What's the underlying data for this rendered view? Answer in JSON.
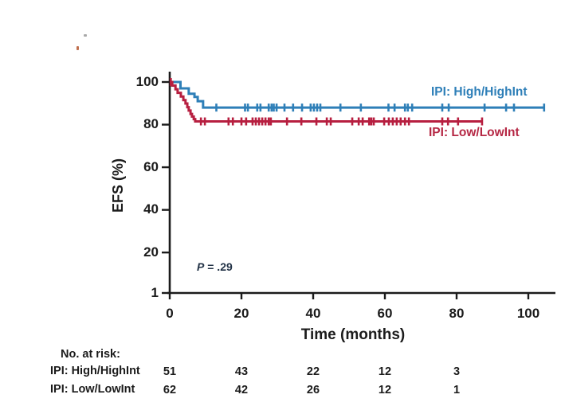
{
  "figure": {
    "y_axis_title": "EFS (%)",
    "x_axis_title": "Time (months)",
    "p_label_italic": "P",
    "p_label_rest": " = .29"
  },
  "legend": {
    "high": "IPI: High/HighInt",
    "low": "IPI: Low/LowInt"
  },
  "risk_table": {
    "header": "No. at risk:",
    "times": [
      0,
      20,
      40,
      60,
      80
    ],
    "rows": [
      {
        "label": "IPI: High/HighInt",
        "values": [
          "51",
          "43",
          "22",
          "12",
          "3"
        ]
      },
      {
        "label": "IPI: Low/LowInt",
        "values": [
          "62",
          "42",
          "26",
          "12",
          "1"
        ]
      }
    ]
  },
  "chart_data": {
    "type": "line",
    "subtype": "kaplan_meier_step",
    "title": "",
    "xlabel": "Time (months)",
    "ylabel": "EFS (%)",
    "xlim": [
      0,
      107
    ],
    "ylim": [
      1,
      100
    ],
    "grid": false,
    "legend_position": "inline-right",
    "annotation": "P = .29",
    "axis_color": "#1b1b1b",
    "x_ticks": [
      0,
      20,
      40,
      60,
      80,
      100
    ],
    "x_tick_labels": [
      "0",
      "20",
      "40",
      "60",
      "80",
      "100"
    ],
    "y_ticks": [
      100,
      80,
      60,
      40,
      20,
      1
    ],
    "y_tick_labels": [
      "100",
      "80",
      "60",
      "40",
      "20",
      "1"
    ],
    "series": [
      {
        "name": "IPI: High/HighInt",
        "color": "#2e7fb8",
        "n": 51,
        "plateau_percent": 88,
        "points": [
          [
            0,
            100
          ],
          [
            3,
            100
          ],
          [
            3,
            97
          ],
          [
            5.3,
            97
          ],
          [
            5.3,
            94.5
          ],
          [
            6.9,
            94.5
          ],
          [
            6.9,
            93
          ],
          [
            7.8,
            93
          ],
          [
            7.8,
            91
          ],
          [
            9.3,
            91
          ],
          [
            9.3,
            88
          ],
          [
            104.4,
            88
          ]
        ],
        "censors": [
          [
            13,
            88
          ],
          [
            21,
            88
          ],
          [
            21.8,
            88
          ],
          [
            24.4,
            88
          ],
          [
            25.3,
            88
          ],
          [
            27.6,
            88
          ],
          [
            28.4,
            88
          ],
          [
            29,
            88
          ],
          [
            29.8,
            88
          ],
          [
            32,
            88
          ],
          [
            34.4,
            88
          ],
          [
            36.9,
            88
          ],
          [
            39.3,
            88
          ],
          [
            40.2,
            88
          ],
          [
            41.1,
            88
          ],
          [
            42,
            88
          ],
          [
            47.6,
            88
          ],
          [
            53.3,
            88
          ],
          [
            61,
            88
          ],
          [
            62.7,
            88
          ],
          [
            65.6,
            88
          ],
          [
            66.4,
            88
          ],
          [
            67.6,
            88
          ],
          [
            76,
            88
          ],
          [
            77.8,
            88
          ],
          [
            87.8,
            88
          ],
          [
            93.8,
            88
          ],
          [
            96,
            88
          ],
          [
            104.4,
            88
          ]
        ]
      },
      {
        "name": "IPI: Low/LowInt",
        "color": "#b71f40",
        "n": 62,
        "plateau_percent": 81.5,
        "points": [
          [
            0,
            100
          ],
          [
            0.7,
            100
          ],
          [
            0.7,
            98.3
          ],
          [
            1.6,
            98.3
          ],
          [
            1.6,
            96.6
          ],
          [
            2.2,
            96.6
          ],
          [
            2.2,
            94.9
          ],
          [
            3.1,
            94.9
          ],
          [
            3.1,
            93.2
          ],
          [
            3.8,
            93.2
          ],
          [
            3.8,
            91.5
          ],
          [
            4.4,
            91.5
          ],
          [
            4.4,
            89.9
          ],
          [
            4.9,
            89.9
          ],
          [
            4.9,
            88.2
          ],
          [
            5.3,
            88.2
          ],
          [
            5.3,
            86.6
          ],
          [
            5.8,
            86.6
          ],
          [
            5.8,
            85
          ],
          [
            6.2,
            85
          ],
          [
            6.2,
            83.8
          ],
          [
            6.7,
            83.8
          ],
          [
            6.7,
            82.6
          ],
          [
            7.1,
            82.6
          ],
          [
            7.1,
            81.5
          ],
          [
            87.1,
            81.5
          ]
        ],
        "censors": [
          [
            0.3,
            100
          ],
          [
            8.7,
            81.5
          ],
          [
            9.8,
            81.5
          ],
          [
            16.4,
            81.5
          ],
          [
            17.6,
            81.5
          ],
          [
            20,
            81.5
          ],
          [
            21.3,
            81.5
          ],
          [
            23.1,
            81.5
          ],
          [
            24,
            81.5
          ],
          [
            24.9,
            81.5
          ],
          [
            25.8,
            81.5
          ],
          [
            26.7,
            81.5
          ],
          [
            27.6,
            81.5
          ],
          [
            28.2,
            81.5
          ],
          [
            32.7,
            81.5
          ],
          [
            36.7,
            81.5
          ],
          [
            40.9,
            81.5
          ],
          [
            43.8,
            81.5
          ],
          [
            44.9,
            81.5
          ],
          [
            50.9,
            81.5
          ],
          [
            52.7,
            81.5
          ],
          [
            53.8,
            81.5
          ],
          [
            55.6,
            81.5
          ],
          [
            56.2,
            81.5
          ],
          [
            56.9,
            81.5
          ],
          [
            59.8,
            81.5
          ],
          [
            61.1,
            81.5
          ],
          [
            62.2,
            81.5
          ],
          [
            63.3,
            81.5
          ],
          [
            64.4,
            81.5
          ],
          [
            65.6,
            81.5
          ],
          [
            66.7,
            81.5
          ],
          [
            76,
            81.5
          ],
          [
            77.6,
            81.5
          ],
          [
            80.4,
            81.5
          ],
          [
            87.1,
            81.5
          ]
        ]
      }
    ]
  }
}
